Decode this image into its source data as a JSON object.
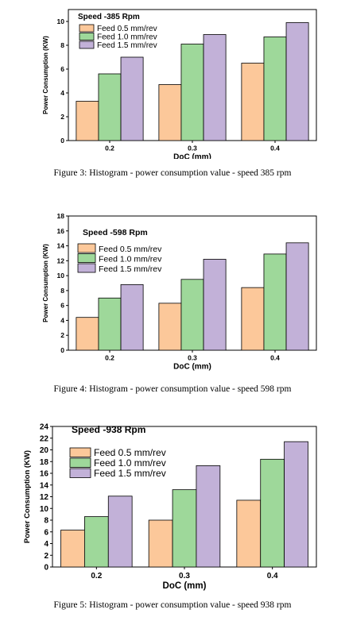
{
  "chart_data": [
    {
      "type": "bar",
      "annotation": "Speed -385 Rpm",
      "xlabel": "DoC (mm)",
      "ylabel": "Power Consumption (KW)",
      "categories": [
        "0.2",
        "0.3",
        "0.4"
      ],
      "ylim": [
        0,
        11
      ],
      "yticks": [
        0,
        2,
        4,
        6,
        8,
        10
      ],
      "legend_position": "top-left",
      "series": [
        {
          "name": "Feed 0.5 mm/rev",
          "color": "#fcc89a",
          "values": [
            3.3,
            4.7,
            6.5
          ]
        },
        {
          "name": "Feed 1.0 mm/rev",
          "color": "#9ed89a",
          "values": [
            5.6,
            8.1,
            8.7
          ]
        },
        {
          "name": "Feed 1.5 mm/rev",
          "color": "#c2b1d8",
          "values": [
            7.0,
            8.9,
            9.9
          ]
        }
      ],
      "caption": "Figure 3: Histogram - power consumption value - speed 385 rpm"
    },
    {
      "type": "bar",
      "annotation": "Speed -598 Rpm",
      "xlabel": "DoC (mm)",
      "ylabel": "Power Consumption (KW)",
      "categories": [
        "0.2",
        "0.3",
        "0.4"
      ],
      "ylim": [
        0,
        18
      ],
      "yticks": [
        0,
        2,
        4,
        6,
        8,
        10,
        12,
        14,
        16,
        18
      ],
      "legend_position": "top-left",
      "series": [
        {
          "name": "Feed 0.5 mm/rev",
          "color": "#fcc89a",
          "values": [
            4.4,
            6.3,
            8.4
          ]
        },
        {
          "name": "Feed 1.0 mm/rev",
          "color": "#9ed89a",
          "values": [
            7.0,
            9.5,
            12.9
          ]
        },
        {
          "name": "Feed 1.5 mm/rev",
          "color": "#c2b1d8",
          "values": [
            8.8,
            12.2,
            14.4
          ]
        }
      ],
      "caption": "Figure 4:   Histogram - power consumption value - speed 598 rpm"
    },
    {
      "type": "bar",
      "annotation": "Speed -938 Rpm",
      "xlabel": "DoC (mm)",
      "ylabel": "Power Consumption (KW)",
      "categories": [
        "0.2",
        "0.3",
        "0.4"
      ],
      "ylim": [
        0,
        24
      ],
      "yticks": [
        0,
        2,
        4,
        6,
        8,
        10,
        12,
        14,
        16,
        18,
        20,
        22,
        24
      ],
      "legend_position": "top-left",
      "series": [
        {
          "name": "Feed 0.5 mm/rev",
          "color": "#fcc89a",
          "values": [
            6.3,
            8.0,
            11.4
          ]
        },
        {
          "name": "Feed 1.0 mm/rev",
          "color": "#9ed89a",
          "values": [
            8.6,
            13.2,
            18.4
          ]
        },
        {
          "name": "Feed 1.5 mm/rev",
          "color": "#c2b1d8",
          "values": [
            12.1,
            17.3,
            21.4
          ]
        }
      ],
      "caption": "Figure 5: Histogram - power consumption value - speed 938 rpm"
    }
  ]
}
